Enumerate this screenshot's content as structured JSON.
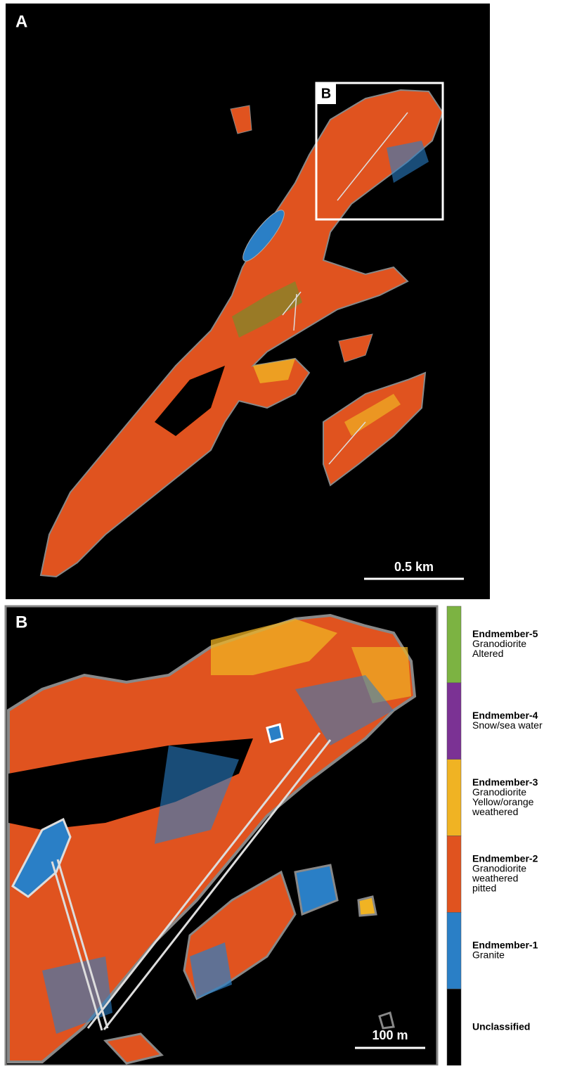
{
  "panels": [
    {
      "label": "A",
      "inset_label": "B",
      "scale_bar": "0.5 km"
    },
    {
      "label": "B",
      "scale_bar": "100 m"
    }
  ],
  "legend": [
    {
      "name": "Endmember-5",
      "description": [
        "Granodiorite",
        "Altered"
      ],
      "color": "#7cb342"
    },
    {
      "name": "Endmember-4",
      "description": [
        "Snow/sea water"
      ],
      "color": "#7b3294"
    },
    {
      "name": "Endmember-3",
      "description": [
        "Granodiorite",
        "Yellow/orange",
        "weathered"
      ],
      "color": "#f0b323"
    },
    {
      "name": "Endmember-2",
      "description": [
        "Granodiorite",
        "weathered",
        "pitted"
      ],
      "color": "#e0531f"
    },
    {
      "name": "Endmember-1",
      "description": [
        "Granite"
      ],
      "color": "#2a7fc6"
    },
    {
      "name": "Unclassified",
      "description": [],
      "color": "#000000"
    }
  ]
}
